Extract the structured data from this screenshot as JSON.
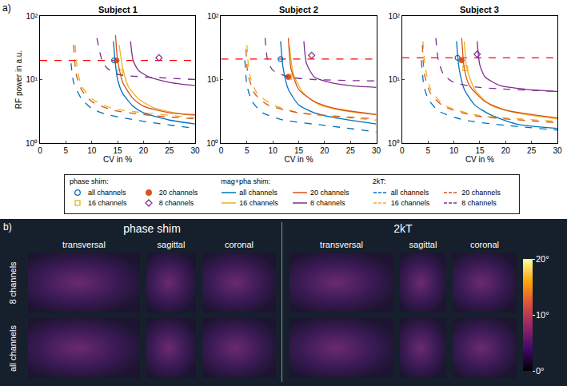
{
  "panel_a_label": "a)",
  "chart_data": [
    {
      "type": "line",
      "title": "Subject 1",
      "x_label": "CV in %",
      "y_label": "RF power in a.u.",
      "log": "y",
      "grid": false,
      "xlim": [
        0,
        30
      ],
      "xticks": [
        0,
        5,
        10,
        15,
        20,
        25,
        30
      ],
      "ylim": [
        1,
        100
      ],
      "yticks": [
        {
          "value": 1,
          "label": "10⁰"
        },
        {
          "value": 10,
          "label": "10¹"
        },
        {
          "value": 100,
          "label": "10²"
        }
      ],
      "limit": {
        "value": 20,
        "color": "#ff0000",
        "line_style": "dash"
      },
      "series": [
        {
          "name": "all channels",
          "group": "phase shim:",
          "type": "scatter",
          "marker": "circle-open",
          "color": "#0072BD",
          "x": [
            14.3
          ],
          "values": [
            20
          ]
        },
        {
          "name": "16 channels",
          "group": "phase shim:",
          "type": "scatter",
          "marker": "square-open",
          "color": "#EDB120",
          "x": [
            15.5
          ],
          "values": [
            13
          ]
        },
        {
          "name": "20 channels",
          "group": "phase shim:",
          "type": "scatter",
          "marker": "circle",
          "color": "#D95319",
          "x": [
            14.8
          ],
          "values": [
            20
          ]
        },
        {
          "name": "8 channels",
          "group": "phase shim:",
          "type": "scatter",
          "marker": "diamond-open",
          "color": "#7E2F8E",
          "x": [
            23
          ],
          "values": [
            22
          ]
        },
        {
          "name": "all channels",
          "group": "mag+pha shim:",
          "type": "line",
          "line_style": "solid",
          "color": "#0072BD",
          "x": [
            14.2,
            14.5,
            15,
            16,
            18,
            20,
            25,
            30
          ],
          "values": [
            40,
            20,
            10,
            6,
            3.8,
            3,
            2.3,
            2
          ]
        },
        {
          "name": "16 channels",
          "group": "mag+pha shim:",
          "type": "line",
          "line_style": "solid",
          "color": "#EDB120",
          "x": [
            15.3,
            16,
            17,
            19,
            22,
            26,
            30
          ],
          "values": [
            35,
            15,
            8,
            5,
            3.6,
            3,
            2.7
          ]
        },
        {
          "name": "20 channels",
          "group": "mag+pha shim:",
          "type": "line",
          "line_style": "solid",
          "color": "#D95319",
          "x": [
            14.6,
            15,
            16,
            18,
            20,
            25,
            30
          ],
          "values": [
            50,
            20,
            9,
            5,
            3.8,
            3,
            2.8
          ]
        },
        {
          "name": "8 channels",
          "group": "mag+pha shim:",
          "type": "line",
          "line_style": "solid",
          "color": "#7E2F8E",
          "x": [
            17.5,
            18,
            19,
            21,
            25,
            30
          ],
          "values": [
            40,
            20,
            14,
            11,
            9,
            8
          ]
        },
        {
          "name": "all channels",
          "group": "2kT:",
          "type": "line",
          "line_style": "dash",
          "color": "#0072BD",
          "x": [
            6,
            6.5,
            8,
            10,
            13,
            20,
            30
          ],
          "values": [
            18,
            9,
            5,
            3.5,
            2.8,
            2.2,
            1.7
          ]
        },
        {
          "name": "16 channels",
          "group": "2kT:",
          "type": "line",
          "line_style": "dash",
          "color": "#EDB120",
          "x": [
            6.8,
            7.2,
            8,
            10,
            14,
            20,
            30
          ],
          "values": [
            35,
            15,
            8,
            5,
            3.5,
            3,
            2.5
          ]
        },
        {
          "name": "20 channels",
          "group": "2kT:",
          "type": "line",
          "line_style": "dash",
          "color": "#D95319",
          "x": [
            6.5,
            7,
            8,
            10,
            14,
            20,
            30
          ],
          "values": [
            35,
            12,
            7,
            4.5,
            3.3,
            2.8,
            2.4
          ]
        },
        {
          "name": "8 channels",
          "group": "2kT:",
          "type": "line",
          "line_style": "dash",
          "color": "#7E2F8E",
          "x": [
            11,
            12,
            13,
            15,
            20,
            25,
            30
          ],
          "values": [
            45,
            20,
            15,
            12,
            11,
            10.5,
            10
          ]
        }
      ]
    },
    {
      "type": "line",
      "title": "Subject 2",
      "x_label": "CV in %",
      "log": "y",
      "grid": false,
      "xlim": [
        0,
        30
      ],
      "xticks": [
        0,
        5,
        10,
        15,
        20,
        25,
        30
      ],
      "ylim": [
        1,
        100
      ],
      "yticks": [
        {
          "value": 1,
          "label": "10⁰"
        },
        {
          "value": 10,
          "label": "10¹"
        },
        {
          "value": 100,
          "label": "10²"
        }
      ],
      "limit": {
        "value": 21,
        "color": "#ff0000",
        "line_style": "dash"
      },
      "series": [
        {
          "name": "all channels",
          "group": "phase shim:",
          "type": "scatter",
          "marker": "circle-open",
          "color": "#0072BD",
          "x": [
            11.5
          ],
          "values": [
            21
          ]
        },
        {
          "name": "16 channels",
          "group": "phase shim:",
          "type": "scatter",
          "marker": "square-open",
          "color": "#EDB120",
          "x": [
            13.2
          ],
          "values": [
            11
          ]
        },
        {
          "name": "20 channels",
          "group": "phase shim:",
          "type": "scatter",
          "marker": "circle",
          "color": "#D95319",
          "x": [
            13
          ],
          "values": [
            11
          ]
        },
        {
          "name": "8 channels",
          "group": "phase shim:",
          "type": "scatter",
          "marker": "diamond-open",
          "color": "#7E2F8E",
          "x": [
            17.5
          ],
          "values": [
            24
          ]
        },
        {
          "name": "all channels",
          "group": "mag+pha shim:",
          "type": "line",
          "line_style": "solid",
          "color": "#0072BD",
          "x": [
            11.5,
            12,
            13,
            15,
            18,
            22,
            30
          ],
          "values": [
            40,
            15,
            7,
            4,
            3,
            2.5,
            2
          ]
        },
        {
          "name": "16 channels",
          "group": "mag+pha shim:",
          "type": "line",
          "line_style": "solid",
          "color": "#EDB120",
          "x": [
            13.2,
            14,
            16,
            19,
            24,
            30
          ],
          "values": [
            35,
            12,
            6,
            4,
            3.2,
            2.8
          ]
        },
        {
          "name": "20 channels",
          "group": "mag+pha shim:",
          "type": "line",
          "line_style": "solid",
          "color": "#D95319",
          "x": [
            13,
            13.5,
            15,
            18,
            22,
            30
          ],
          "values": [
            45,
            15,
            7,
            4.5,
            3.5,
            2.8
          ]
        },
        {
          "name": "8 channels",
          "group": "mag+pha shim:",
          "type": "line",
          "line_style": "solid",
          "color": "#7E2F8E",
          "x": [
            16,
            16.5,
            18,
            21,
            25,
            30
          ],
          "values": [
            40,
            18,
            11,
            9,
            8,
            7.5
          ]
        },
        {
          "name": "all channels",
          "group": "2kT:",
          "type": "line",
          "line_style": "dash",
          "color": "#0072BD",
          "x": [
            4.6,
            5,
            6,
            8,
            12,
            20,
            30
          ],
          "values": [
            20,
            8,
            4.5,
            3,
            2.3,
            1.9,
            1.5
          ]
        },
        {
          "name": "16 channels",
          "group": "2kT:",
          "type": "line",
          "line_style": "dash",
          "color": "#EDB120",
          "x": [
            5,
            5.5,
            7,
            10,
            15,
            30
          ],
          "values": [
            35,
            12,
            6,
            4,
            3,
            2.3
          ]
        },
        {
          "name": "20 channels",
          "group": "2kT:",
          "type": "line",
          "line_style": "dash",
          "color": "#D95319",
          "x": [
            4.8,
            5.2,
            6.5,
            9,
            15,
            30
          ],
          "values": [
            30,
            12,
            6,
            4,
            3,
            2.4
          ]
        },
        {
          "name": "8 channels",
          "group": "2kT:",
          "type": "line",
          "line_style": "dash",
          "color": "#7E2F8E",
          "x": [
            8.5,
            9,
            10,
            13,
            18,
            30
          ],
          "values": [
            45,
            20,
            14,
            11,
            10,
            9.5
          ]
        }
      ]
    },
    {
      "type": "line",
      "title": "Subject 3",
      "x_label": "CV in %",
      "log": "y",
      "grid": false,
      "xlim": [
        0,
        30
      ],
      "xticks": [
        0,
        5,
        10,
        15,
        20,
        25,
        30
      ],
      "ylim": [
        1,
        100
      ],
      "yticks": [
        {
          "value": 1,
          "label": "10⁰"
        },
        {
          "value": 10,
          "label": "10¹"
        },
        {
          "value": 100,
          "label": "10²"
        }
      ],
      "limit": {
        "value": 22,
        "color": "#ff0000",
        "line_style": "dash"
      },
      "series": [
        {
          "name": "all channels",
          "group": "phase shim:",
          "type": "scatter",
          "marker": "circle-open",
          "color": "#0072BD",
          "x": [
            10.7
          ],
          "values": [
            22
          ]
        },
        {
          "name": "16 channels",
          "group": "phase shim:",
          "type": "scatter",
          "marker": "square-open",
          "color": "#EDB120",
          "x": [
            12.2
          ],
          "values": [
            15
          ]
        },
        {
          "name": "20 channels",
          "group": "phase shim:",
          "type": "scatter",
          "marker": "circle",
          "color": "#D95319",
          "x": [
            11.5
          ],
          "values": [
            20
          ]
        },
        {
          "name": "8 channels",
          "group": "phase shim:",
          "type": "scatter",
          "marker": "diamond-open",
          "color": "#7E2F8E",
          "x": [
            14.5
          ],
          "values": [
            25
          ]
        },
        {
          "name": "all channels",
          "group": "mag+pha shim:",
          "type": "line",
          "line_style": "solid",
          "color": "#0072BD",
          "x": [
            10.5,
            11,
            12,
            14,
            17,
            22,
            30
          ],
          "values": [
            40,
            15,
            7,
            4,
            2.8,
            2,
            1.7
          ]
        },
        {
          "name": "16 channels",
          "group": "mag+pha shim:",
          "type": "line",
          "line_style": "solid",
          "color": "#EDB120",
          "x": [
            12,
            12.5,
            14,
            17,
            22,
            30
          ],
          "values": [
            40,
            15,
            7,
            4,
            3,
            2.4
          ]
        },
        {
          "name": "20 channels",
          "group": "mag+pha shim:",
          "type": "line",
          "line_style": "solid",
          "color": "#D95319",
          "x": [
            11.5,
            12,
            13,
            16,
            20,
            30
          ],
          "values": [
            45,
            15,
            8,
            4.5,
            3.3,
            2.5
          ]
        },
        {
          "name": "8 channels",
          "group": "mag+pha shim:",
          "type": "line",
          "line_style": "solid",
          "color": "#7E2F8E",
          "x": [
            14.5,
            15,
            16,
            19,
            24,
            30
          ],
          "values": [
            40,
            17,
            11,
            8,
            7,
            6.5
          ]
        },
        {
          "name": "all channels",
          "group": "2kT:",
          "type": "line",
          "line_style": "dash",
          "color": "#0072BD",
          "x": [
            3.7,
            4.2,
            5,
            7,
            12,
            20,
            30
          ],
          "values": [
            20,
            8,
            5,
            3.2,
            2.3,
            1.9,
            1.6
          ]
        },
        {
          "name": "16 channels",
          "group": "2kT:",
          "type": "line",
          "line_style": "dash",
          "color": "#EDB120",
          "x": [
            4,
            4.5,
            5.5,
            8,
            14,
            30
          ],
          "values": [
            40,
            15,
            7,
            4,
            2.8,
            2.2
          ]
        },
        {
          "name": "20 channels",
          "group": "2kT:",
          "type": "line",
          "line_style": "dash",
          "color": "#D95319",
          "x": [
            3.9,
            4.3,
            5.5,
            8,
            14,
            30
          ],
          "values": [
            35,
            12,
            6,
            3.8,
            2.7,
            2.1
          ]
        },
        {
          "name": "8 channels",
          "group": "2kT:",
          "type": "line",
          "line_style": "dash",
          "color": "#7E2F8E",
          "x": [
            6.5,
            7,
            8,
            10,
            15,
            30
          ],
          "values": [
            45,
            20,
            12,
            9,
            7.5,
            6.5
          ]
        }
      ]
    }
  ],
  "panel_b": {
    "label": "b)",
    "sections": [
      {
        "title": "phase shim",
        "views": [
          "transversal",
          "sagittal",
          "coronal"
        ]
      },
      {
        "title": "2kT",
        "views": [
          "transversal",
          "sagittal",
          "coronal"
        ]
      }
    ],
    "rows": [
      "8 channels",
      "all channels"
    ],
    "colorbar": {
      "range": [
        0,
        20
      ],
      "ticks": [
        {
          "value": 0,
          "label": "0°"
        },
        {
          "value": 10,
          "label": "10°"
        },
        {
          "value": 20,
          "label": "20°"
        }
      ]
    }
  }
}
